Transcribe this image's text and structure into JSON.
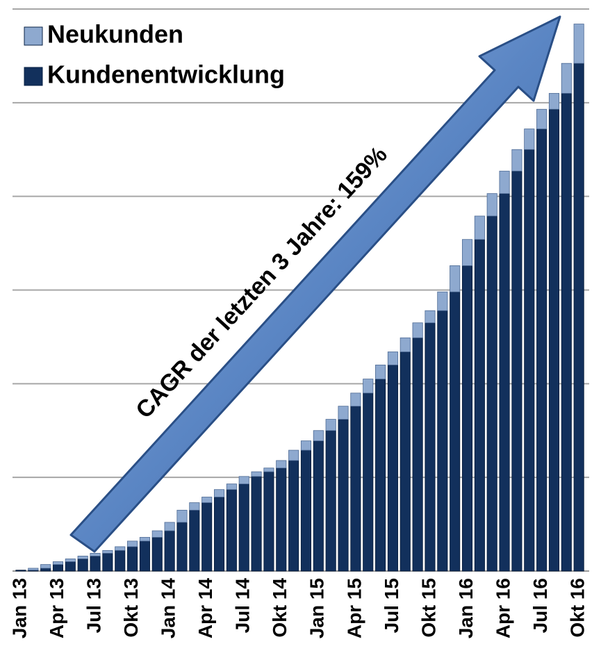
{
  "chart_data": {
    "type": "stacked_bar",
    "annotation": "CAGR der letzten 3 Jahre: 159%",
    "categories": [
      "Jan 13",
      null,
      null,
      "Apr 13",
      null,
      null,
      "Jul 13",
      null,
      null,
      "Okt 13",
      null,
      null,
      "Jan 14",
      null,
      null,
      "Apr 14",
      null,
      null,
      "Jul 14",
      null,
      null,
      "Okt 14",
      null,
      null,
      "Jan 15",
      null,
      null,
      "Apr 15",
      null,
      null,
      "Jul 15",
      null,
      null,
      "Okt 15",
      null,
      null,
      "Jan 16",
      null,
      null,
      "Apr 16",
      null,
      null,
      "Jul 16",
      null,
      null,
      "Okt 16"
    ],
    "series": [
      {
        "name": "Kundenentwicklung",
        "color": "#12305c",
        "values": [
          0.01,
          0.01,
          0.03,
          0.07,
          0.1,
          0.13,
          0.16,
          0.19,
          0.22,
          0.26,
          0.32,
          0.36,
          0.43,
          0.52,
          0.65,
          0.73,
          0.79,
          0.87,
          0.93,
          1.01,
          1.06,
          1.1,
          1.18,
          1.29,
          1.39,
          1.5,
          1.62,
          1.76,
          1.9,
          2.05,
          2.2,
          2.34,
          2.49,
          2.65,
          2.78,
          2.98,
          3.26,
          3.54,
          3.79,
          4.03,
          4.27,
          4.5,
          4.72,
          4.93,
          5.1,
          5.42
        ]
      },
      {
        "name": "Neukunden",
        "color": "#8ea9cf",
        "values": [
          0.0,
          0.02,
          0.04,
          0.03,
          0.03,
          0.03,
          0.03,
          0.03,
          0.04,
          0.06,
          0.04,
          0.07,
          0.09,
          0.13,
          0.08,
          0.06,
          0.08,
          0.06,
          0.08,
          0.05,
          0.04,
          0.08,
          0.11,
          0.1,
          0.11,
          0.12,
          0.14,
          0.14,
          0.15,
          0.15,
          0.14,
          0.15,
          0.16,
          0.13,
          0.2,
          0.28,
          0.28,
          0.25,
          0.24,
          0.24,
          0.23,
          0.22,
          0.21,
          0.17,
          0.32,
          0.42
        ]
      }
    ],
    "ylim": [
      0,
      6
    ],
    "yticks": [
      0,
      1,
      2,
      3,
      4,
      5,
      6
    ],
    "grid": true
  }
}
